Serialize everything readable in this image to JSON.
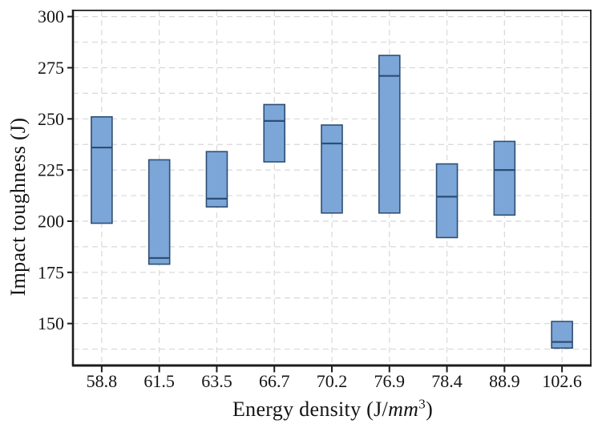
{
  "chart_data": {
    "type": "box",
    "title": "",
    "ylabel": "Impact toughness (J)",
    "xlabel": "Energy density (J/mm^3)",
    "xlabel_parts": {
      "prefix": "Energy density (J/",
      "italic": "mm",
      "sup": "3",
      "suffix": ")"
    },
    "categories": [
      "58.8",
      "61.5",
      "63.5",
      "66.7",
      "70.2",
      "76.9",
      "78.4",
      "88.9",
      "102.6"
    ],
    "series": [
      {
        "name": "Impact toughness",
        "boxes": [
          {
            "min": 199,
            "median": 236,
            "max": 251
          },
          {
            "min": 179,
            "median": 182,
            "max": 230
          },
          {
            "min": 207,
            "median": 211,
            "max": 234
          },
          {
            "min": 229,
            "median": 249,
            "max": 257
          },
          {
            "min": 204,
            "median": 238,
            "max": 247
          },
          {
            "min": 204,
            "median": 271,
            "max": 281
          },
          {
            "min": 192,
            "median": 212,
            "max": 228
          },
          {
            "min": 203,
            "median": 225,
            "max": 239
          },
          {
            "min": 138,
            "median": 141,
            "max": 151
          }
        ]
      }
    ],
    "ylim": [
      129.5,
      303
    ],
    "y_major_ticks": [
      300,
      275,
      250,
      225,
      200,
      175,
      150
    ],
    "y_minor_grid_step": 12.5,
    "grid": {
      "horizontal": "major+minor dashed",
      "vertical": "category centers dashed"
    },
    "legend": "none",
    "colors": {
      "box_fill": "#7CA6D8",
      "box_border": "#2E4E72",
      "median_line": "#2E4E72",
      "gridline": "#D8D8D8",
      "frame": "#1C1C1C",
      "text": "#141414",
      "background": "#FFFFFF"
    }
  }
}
